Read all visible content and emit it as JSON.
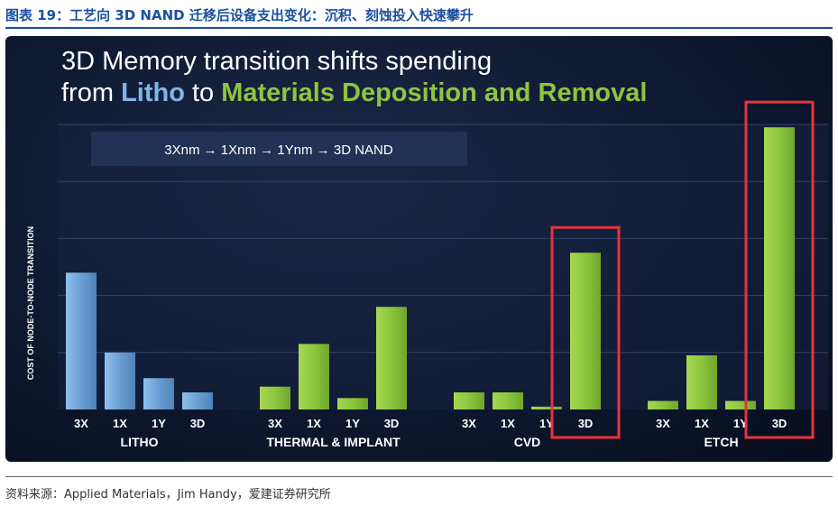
{
  "figure_title": "图表 19：工艺向 3D NAND 迁移后设备支出变化：沉积、刻蚀投入快速攀升",
  "source": "资料来源：Applied Materials，Jim Handy，爱建证券研究所",
  "colors": {
    "litho": "#6a9fd4",
    "green": "#8cc63f",
    "highlight": "#e8333a",
    "title_blue": "#1c4fa0",
    "accent_blue": "#7fb6e8",
    "accent_green": "#8cc63f"
  },
  "chart_data": {
    "type": "bar",
    "title_line1": "3D Memory transition shifts spending",
    "title_line2_prefix": "from",
    "title_line2_litho": "Litho",
    "title_line2_mid": "to",
    "title_line2_green": "Materials Deposition and Removal",
    "progression": [
      "3Xnm",
      "1Xnm",
      "1Ynm",
      "3D NAND"
    ],
    "progression_arrow": "→",
    "ylabel": "COST OF NODE-TO-NODE TRANSITION",
    "ylim": [
      0,
      100
    ],
    "grid": true,
    "categories": [
      "3X",
      "1X",
      "1Y",
      "3D"
    ],
    "groups": [
      {
        "name": "LITHO",
        "values": [
          48,
          20,
          11,
          6
        ],
        "color": "litho",
        "highlight": false
      },
      {
        "name": "THERMAL & IMPLANT",
        "values": [
          8,
          23,
          4,
          36
        ],
        "color": "green",
        "highlight": false
      },
      {
        "name": "CVD",
        "values": [
          6,
          6,
          1,
          55
        ],
        "color": "green",
        "highlight": true
      },
      {
        "name": "ETCH",
        "values": [
          3,
          19,
          3,
          99
        ],
        "color": "green",
        "highlight": true
      }
    ]
  }
}
